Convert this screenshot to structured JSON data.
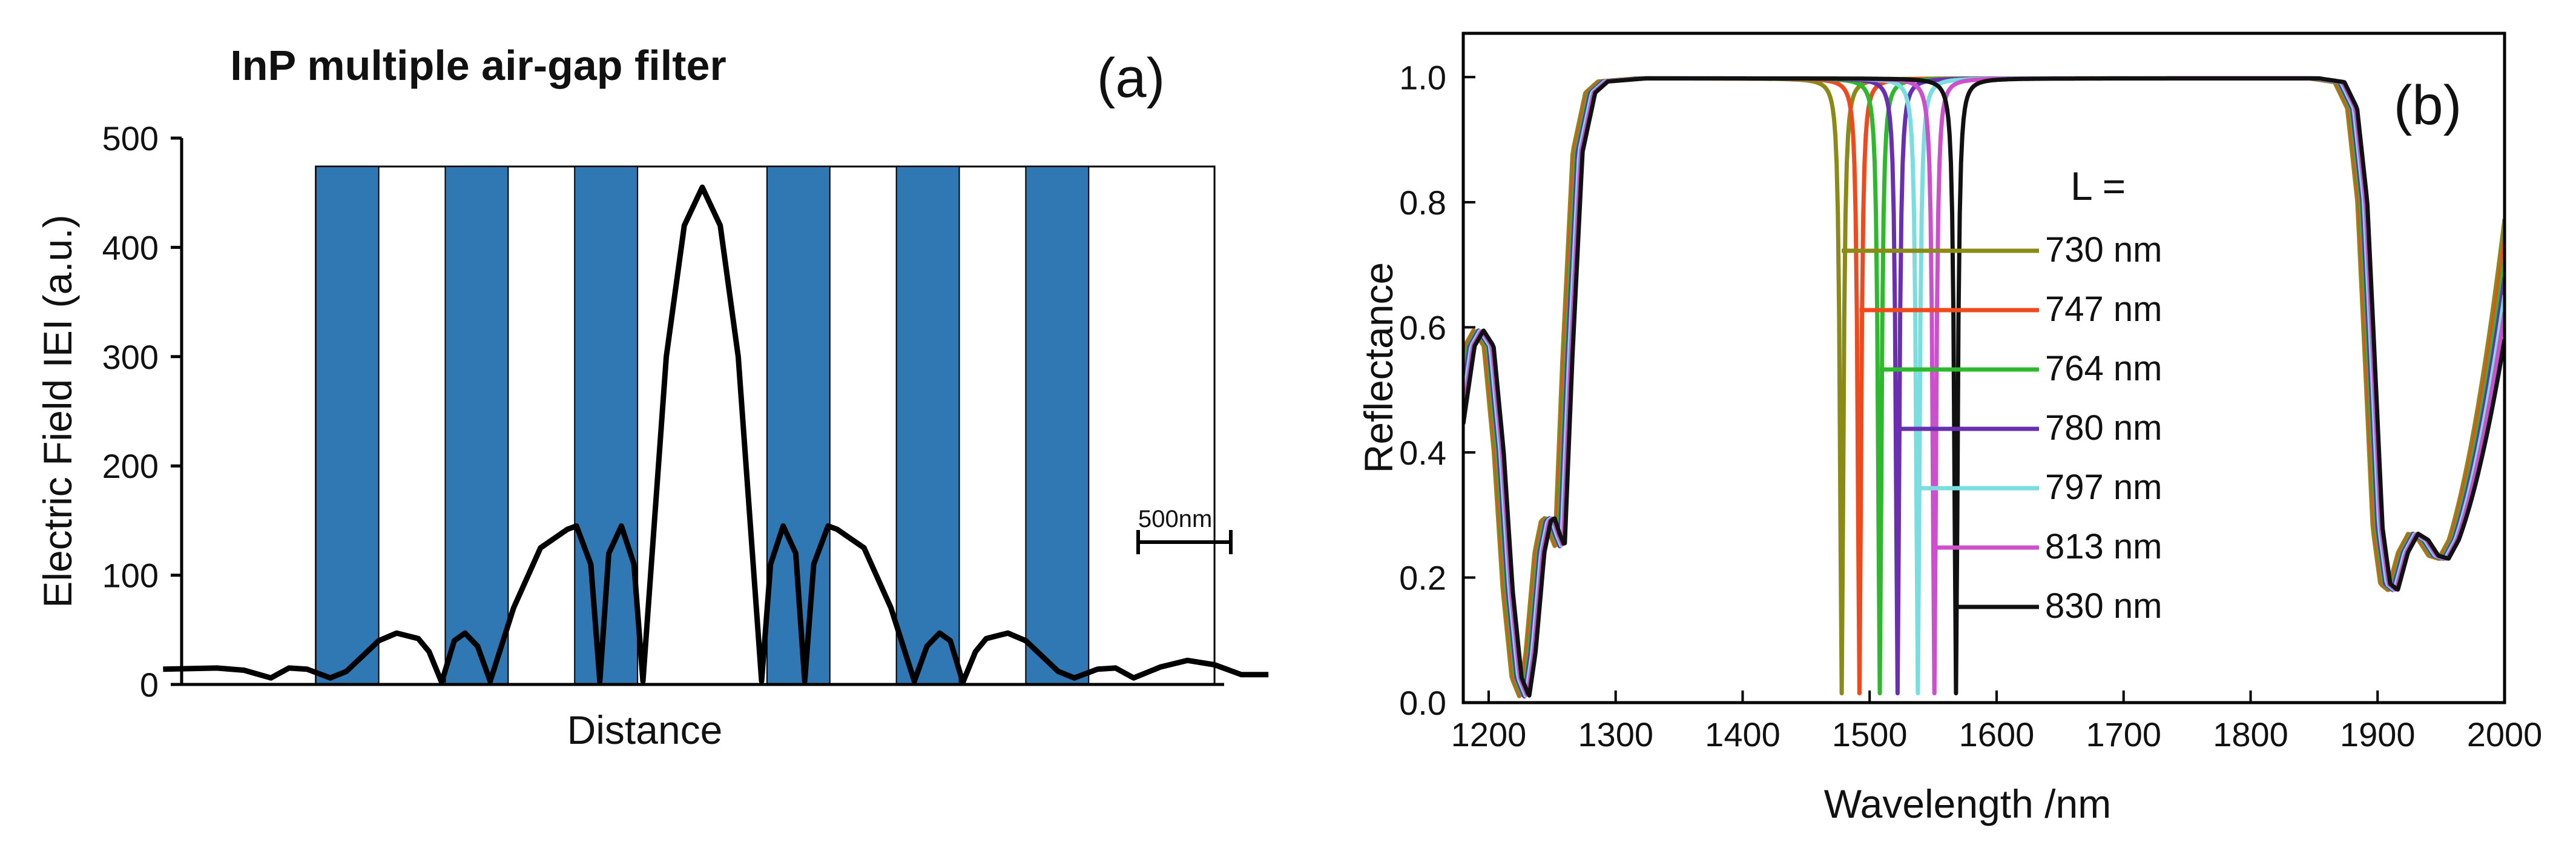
{
  "chart_data": [
    {
      "id": "a",
      "type": "line",
      "panel_label": "(a)",
      "title": "InP multiple air-gap filter",
      "xlabel": "Distance",
      "ylabel": "Electric Field IEI (a.u.)",
      "ylim": [
        0,
        500
      ],
      "yticks": [
        "0",
        "100",
        "200",
        "300",
        "400",
        "500"
      ],
      "xlim": [
        -3.2,
        3.2
      ],
      "layer_color": "#2f78b4",
      "layers": [
        {
          "name": "InP layer 1",
          "x0": -2.15,
          "x1": -1.8
        },
        {
          "name": "InP layer 2",
          "x0": -1.43,
          "x1": -1.08
        },
        {
          "name": "InP layer 3",
          "x0": -0.71,
          "x1": -0.36
        },
        {
          "name": "InP layer 4",
          "x0": 0.36,
          "x1": 0.71
        },
        {
          "name": "InP layer 5",
          "x0": 1.08,
          "x1": 1.43
        },
        {
          "name": "InP layer 6",
          "x0": 1.8,
          "x1": 2.15
        }
      ],
      "structure_extent": {
        "x0": -2.15,
        "x1": 2.85,
        "top": 474
      },
      "scale_bar": {
        "label": "500nm",
        "length": 0.5
      },
      "series": [
        {
          "name": "|E| field",
          "color": "#000000",
          "points": [
            [
              -3.0,
              14
            ],
            [
              -2.7,
              15
            ],
            [
              -2.55,
              13
            ],
            [
              -2.4,
              6
            ],
            [
              -2.3,
              15
            ],
            [
              -2.2,
              14
            ],
            [
              -2.07,
              6
            ],
            [
              -1.98,
              12
            ],
            [
              -1.8,
              40
            ],
            [
              -1.7,
              47
            ],
            [
              -1.58,
              42
            ],
            [
              -1.52,
              30
            ],
            [
              -1.45,
              2
            ],
            [
              -1.38,
              40
            ],
            [
              -1.32,
              47
            ],
            [
              -1.25,
              35
            ],
            [
              -1.18,
              3
            ],
            [
              -1.05,
              70
            ],
            [
              -0.9,
              125
            ],
            [
              -0.75,
              142
            ],
            [
              -0.7,
              145
            ],
            [
              -0.62,
              110
            ],
            [
              -0.57,
              3
            ],
            [
              -0.52,
              120
            ],
            [
              -0.45,
              145
            ],
            [
              -0.38,
              110
            ],
            [
              -0.33,
              3
            ],
            [
              -0.2,
              300
            ],
            [
              -0.1,
              420
            ],
            [
              0.0,
              455
            ],
            [
              0.1,
              420
            ],
            [
              0.2,
              300
            ],
            [
              0.33,
              3
            ],
            [
              0.38,
              110
            ],
            [
              0.45,
              145
            ],
            [
              0.52,
              120
            ],
            [
              0.57,
              3
            ],
            [
              0.62,
              110
            ],
            [
              0.7,
              145
            ],
            [
              0.75,
              142
            ],
            [
              0.9,
              125
            ],
            [
              1.05,
              70
            ],
            [
              1.18,
              3
            ],
            [
              1.25,
              35
            ],
            [
              1.32,
              47
            ],
            [
              1.38,
              40
            ],
            [
              1.45,
              2
            ],
            [
              1.52,
              30
            ],
            [
              1.58,
              42
            ],
            [
              1.7,
              47
            ],
            [
              1.8,
              40
            ],
            [
              1.98,
              12
            ],
            [
              2.07,
              6
            ],
            [
              2.2,
              14
            ],
            [
              2.3,
              15
            ],
            [
              2.4,
              6
            ],
            [
              2.55,
              16
            ],
            [
              2.7,
              22
            ],
            [
              2.85,
              18
            ],
            [
              3.0,
              9
            ],
            [
              3.15,
              9
            ]
          ]
        }
      ]
    },
    {
      "id": "b",
      "type": "line",
      "panel_label": "(b)",
      "xlabel": "Wavelength /nm",
      "ylabel": "Reflectance",
      "xlim": [
        1180,
        2000
      ],
      "ylim": [
        0,
        1.07
      ],
      "xticks": [
        "1200",
        "1300",
        "1400",
        "1500",
        "1600",
        "1700",
        "1800",
        "1900",
        "2000"
      ],
      "yticks": [
        "0.0",
        "0.2",
        "0.4",
        "0.6",
        "0.8",
        "1.0"
      ],
      "legend_title": "L =",
      "legend_placement": "center-right",
      "base_curve": [
        [
          1180,
          0.5
        ],
        [
          1185,
          0.57
        ],
        [
          1192,
          0.595
        ],
        [
          1200,
          0.57
        ],
        [
          1208,
          0.4
        ],
        [
          1215,
          0.18
        ],
        [
          1222,
          0.04
        ],
        [
          1228,
          0.01
        ],
        [
          1233,
          0.08
        ],
        [
          1240,
          0.24
        ],
        [
          1245,
          0.29
        ],
        [
          1248,
          0.295
        ],
        [
          1252,
          0.27
        ],
        [
          1256,
          0.25
        ],
        [
          1262,
          0.55
        ],
        [
          1270,
          0.88
        ],
        [
          1280,
          0.975
        ],
        [
          1290,
          0.993
        ],
        [
          1320,
          0.998
        ],
        [
          1850,
          0.998
        ],
        [
          1870,
          0.992
        ],
        [
          1880,
          0.95
        ],
        [
          1888,
          0.8
        ],
        [
          1895,
          0.5
        ],
        [
          1900,
          0.28
        ],
        [
          1906,
          0.19
        ],
        [
          1912,
          0.18
        ],
        [
          1920,
          0.24
        ],
        [
          1928,
          0.27
        ],
        [
          1936,
          0.26
        ],
        [
          1944,
          0.235
        ],
        [
          1952,
          0.23
        ],
        [
          1960,
          0.26
        ],
        [
          1970,
          0.34
        ],
        [
          1980,
          0.45
        ],
        [
          1990,
          0.57
        ],
        [
          2000,
          0.67
        ]
      ],
      "series": [
        {
          "name": "730 nm",
          "color": "#8a8a16",
          "dip_nm": 1478,
          "long_end": 0.71
        },
        {
          "name": "747 nm",
          "color": "#ee4a1d",
          "dip_nm": 1492,
          "long_end": 0.7
        },
        {
          "name": "764 nm",
          "color": "#2eb82e",
          "dip_nm": 1508,
          "long_end": 0.69
        },
        {
          "name": "780 nm",
          "color": "#6a2fb0",
          "dip_nm": 1522,
          "long_end": 0.68
        },
        {
          "name": "797 nm",
          "color": "#7adde0",
          "dip_nm": 1538,
          "long_end": 0.67
        },
        {
          "name": "813 nm",
          "color": "#cc4fcc",
          "dip_nm": 1551,
          "long_end": 0.66
        },
        {
          "name": "830 nm",
          "color": "#111111",
          "dip_nm": 1568,
          "long_end": 0.63
        }
      ]
    }
  ]
}
